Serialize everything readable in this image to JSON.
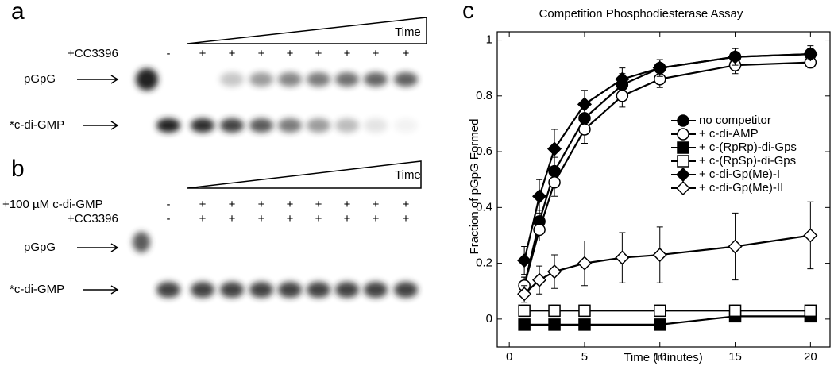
{
  "panel_a": {
    "label": "a",
    "time": "Time",
    "treatment": "+CC3396",
    "lanes": [
      "-",
      "+",
      "+",
      "+",
      "+",
      "+",
      "+",
      "+",
      "+"
    ],
    "bands": [
      "pGpG",
      "*c-di-GMP"
    ]
  },
  "panel_b": {
    "label": "b",
    "time": "Time",
    "treatments": [
      "+100 µM c-di-GMP",
      "+CC3396"
    ],
    "lanes": [
      [
        "-",
        "+",
        "+",
        "+",
        "+",
        "+",
        "+",
        "+",
        "+"
      ],
      [
        "-",
        "+",
        "+",
        "+",
        "+",
        "+",
        "+",
        "+",
        "+"
      ]
    ],
    "bands": [
      "pGpG",
      "*c-di-GMP"
    ]
  },
  "chart_data": {
    "type": "line",
    "label": "c",
    "title": "Competition Phosphodiesterase Assay",
    "x_label": "Time (minutes)",
    "y_label": "Fraction of pGpG Formed",
    "xlim": [
      -0.8,
      21.3
    ],
    "ylim": [
      -0.1,
      1.03
    ],
    "xticks": [
      0,
      5,
      10,
      15,
      20
    ],
    "yticks": [
      0,
      0.2,
      0.4,
      0.6,
      0.8,
      1
    ],
    "grid": false,
    "series": [
      {
        "name": "no competitor",
        "marker": "circle",
        "filled": true,
        "color": "#000000",
        "x": [
          1,
          2,
          3,
          5,
          7.5,
          10,
          15,
          20
        ],
        "values": [
          0.12,
          0.35,
          0.53,
          0.72,
          0.84,
          0.9,
          0.94,
          0.95
        ],
        "errors": [
          0.03,
          0.04,
          0.05,
          0.05,
          0.04,
          0.03,
          0.03,
          0.03
        ]
      },
      {
        "name": "+ c-di-AMP",
        "marker": "circle",
        "filled": false,
        "color": "#000000",
        "x": [
          1,
          2,
          3,
          5,
          7.5,
          10,
          15,
          20
        ],
        "values": [
          0.12,
          0.32,
          0.49,
          0.68,
          0.8,
          0.86,
          0.91,
          0.92
        ],
        "errors": [
          0.03,
          0.04,
          0.05,
          0.05,
          0.04,
          0.03,
          0.03,
          0.02
        ]
      },
      {
        "name": "+ c-(RpRp)-di-Gps",
        "marker": "square",
        "filled": true,
        "color": "#000000",
        "x": [
          1,
          3,
          5,
          10,
          15,
          20
        ],
        "values": [
          -0.02,
          -0.02,
          -0.02,
          -0.02,
          0.01,
          0.01
        ],
        "errors": [
          0.01,
          0.01,
          0.01,
          0.01,
          0.01,
          0.01
        ]
      },
      {
        "name": "+ c-(RpSp)-di-Gps",
        "marker": "square",
        "filled": false,
        "color": "#000000",
        "x": [
          1,
          3,
          5,
          10,
          15,
          20
        ],
        "values": [
          0.03,
          0.03,
          0.03,
          0.03,
          0.03,
          0.03
        ],
        "errors": [
          0.02,
          0.02,
          0.02,
          0.02,
          0.02,
          0.02
        ]
      },
      {
        "name": "+ c-di-Gp(Me)-I",
        "marker": "diamond",
        "filled": true,
        "color": "#000000",
        "x": [
          1,
          2,
          3,
          5,
          7.5,
          10,
          15,
          20
        ],
        "values": [
          0.21,
          0.44,
          0.61,
          0.77,
          0.86,
          0.9,
          0.94,
          0.95
        ],
        "errors": [
          0.05,
          0.06,
          0.07,
          0.05,
          0.04,
          0.03,
          0.03,
          0.02
        ]
      },
      {
        "name": "+ c-di-Gp(Me)-II",
        "marker": "diamond",
        "filled": false,
        "color": "#000000",
        "x": [
          1,
          2,
          3,
          5,
          7.5,
          10,
          15,
          20
        ],
        "values": [
          0.09,
          0.14,
          0.17,
          0.2,
          0.22,
          0.23,
          0.26,
          0.3
        ],
        "errors": [
          0.03,
          0.05,
          0.06,
          0.08,
          0.09,
          0.1,
          0.12,
          0.12
        ]
      }
    ]
  }
}
